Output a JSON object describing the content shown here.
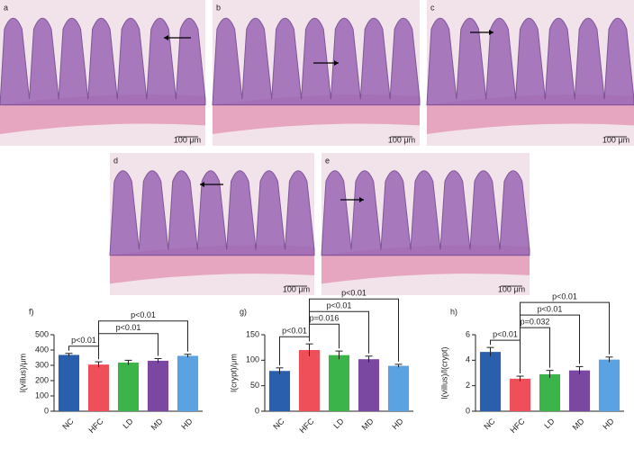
{
  "panels": [
    {
      "label": "a",
      "scale_bar": "100 μm"
    },
    {
      "label": "b",
      "scale_bar": "100 μm"
    },
    {
      "label": "c",
      "scale_bar": "100 μm"
    },
    {
      "label": "d",
      "scale_bar": "100 μm"
    },
    {
      "label": "e",
      "scale_bar": "100 μm"
    }
  ],
  "chart_data": [
    {
      "type": "bar",
      "panel_label": "f)",
      "y_label": "l(villus)/μm",
      "categories": [
        "NC",
        "HFC",
        "LD",
        "MD",
        "HD"
      ],
      "values": [
        368,
        305,
        318,
        330,
        362
      ],
      "errors": [
        10,
        18,
        15,
        14,
        10
      ],
      "colors": [
        "#2a5fae",
        "#ee4f58",
        "#3bb54a",
        "#7a48a0",
        "#5aa2e2"
      ],
      "ylim": [
        0,
        500
      ],
      "yticks": [
        0,
        100,
        200,
        300,
        400,
        500
      ],
      "comparisons": [
        {
          "between": [
            "NC",
            "HFC"
          ],
          "label": "p<0.01"
        },
        {
          "between": [
            "HFC",
            "MD"
          ],
          "label": "p<0.01"
        },
        {
          "between": [
            "HFC",
            "HD"
          ],
          "label": "p<0.01"
        }
      ]
    },
    {
      "type": "bar",
      "panel_label": "g)",
      "y_label": "l(crypt)/μm",
      "categories": [
        "NC",
        "HFC",
        "LD",
        "MD",
        "HD"
      ],
      "values": [
        79,
        120,
        110,
        102,
        89
      ],
      "errors": [
        6,
        12,
        8,
        6,
        3
      ],
      "colors": [
        "#2a5fae",
        "#ee4f58",
        "#3bb54a",
        "#7a48a0",
        "#5aa2e2"
      ],
      "ylim": [
        0,
        150
      ],
      "yticks": [
        0,
        50,
        100,
        150
      ],
      "comparisons": [
        {
          "between": [
            "NC",
            "HFC"
          ],
          "label": "p<0.01"
        },
        {
          "between": [
            "HFC",
            "LD"
          ],
          "label": "p=0.016"
        },
        {
          "between": [
            "HFC",
            "MD"
          ],
          "label": "p<0.01"
        },
        {
          "between": [
            "HFC",
            "HD"
          ],
          "label": "p<0.01"
        }
      ]
    },
    {
      "type": "bar",
      "panel_label": "h)",
      "y_label": "l(villus)/l(crypt)",
      "categories": [
        "NC",
        "HFC",
        "LD",
        "MD",
        "HD"
      ],
      "values": [
        4.65,
        2.55,
        2.9,
        3.2,
        4.05
      ],
      "errors": [
        0.35,
        0.2,
        0.3,
        0.3,
        0.2
      ],
      "colors": [
        "#2a5fae",
        "#ee4f58",
        "#3bb54a",
        "#7a48a0",
        "#5aa2e2"
      ],
      "ylim": [
        0,
        6
      ],
      "yticks": [
        0,
        2,
        4,
        6
      ],
      "comparisons": [
        {
          "between": [
            "NC",
            "HFC"
          ],
          "label": "p<0.01"
        },
        {
          "between": [
            "HFC",
            "LD"
          ],
          "label": "p=0.032"
        },
        {
          "between": [
            "HFC",
            "MD"
          ],
          "label": "p<0.01"
        },
        {
          "between": [
            "HFC",
            "HD"
          ],
          "label": "p<0.01"
        }
      ]
    }
  ]
}
